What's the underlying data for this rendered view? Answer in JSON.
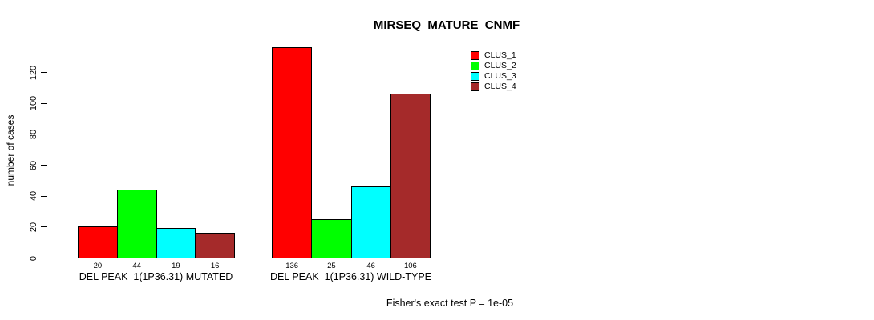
{
  "chart_data": {
    "type": "bar",
    "title": "MIRSEQ_MATURE_CNMF",
    "ylabel": "number of cases",
    "xlabel": "",
    "yticks": [
      0,
      20,
      40,
      60,
      80,
      100,
      120
    ],
    "ylim": [
      0,
      136
    ],
    "grid": false,
    "legend_position": "top-right",
    "categories": [
      "DEL PEAK  1(1P36.31) MUTATED",
      "DEL PEAK  1(1P36.31) WILD-TYPE"
    ],
    "series": [
      {
        "name": "CLUS_1",
        "color": "#FF0000",
        "values": [
          20,
          136
        ]
      },
      {
        "name": "CLUS_2",
        "color": "#00FF00",
        "values": [
          44,
          25
        ]
      },
      {
        "name": "CLUS_3",
        "color": "#00FFFF",
        "values": [
          19,
          46
        ]
      },
      {
        "name": "CLUS_4",
        "color": "#A52A2A",
        "values": [
          16,
          106
        ]
      }
    ],
    "bar_value_labels_shown": true,
    "footer": "Fisher's exact test P = 1e-05"
  }
}
